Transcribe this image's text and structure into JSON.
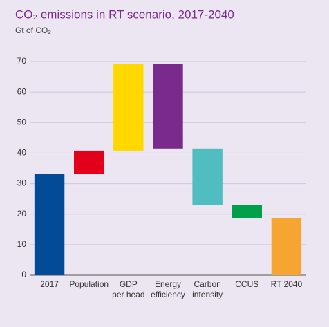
{
  "chart_data": {
    "type": "waterfall",
    "title": "CO₂ emissions in RT scenario, 2017-2040",
    "subtitle": "Gt of CO₂",
    "categories": [
      "2017",
      "Population",
      "GDP\nper head",
      "Energy\nefficiency",
      "Carbon\nintensity",
      "CCUS",
      "RT 2040"
    ],
    "values": [
      33.3,
      7.5,
      28.3,
      -27.6,
      -18.6,
      -4.3,
      18.6
    ],
    "measure": [
      "absolute",
      "relative",
      "relative",
      "relative",
      "relative",
      "relative",
      "absolute"
    ],
    "colors": [
      "#034b96",
      "#e2001a",
      "#ffd800",
      "#7a2a8c",
      "#50bec1",
      "#00a04b",
      "#f6a530"
    ],
    "ylim": [
      0,
      70
    ],
    "yticks": [
      0,
      10,
      20,
      30,
      40,
      50,
      60,
      70
    ],
    "grid": true
  }
}
